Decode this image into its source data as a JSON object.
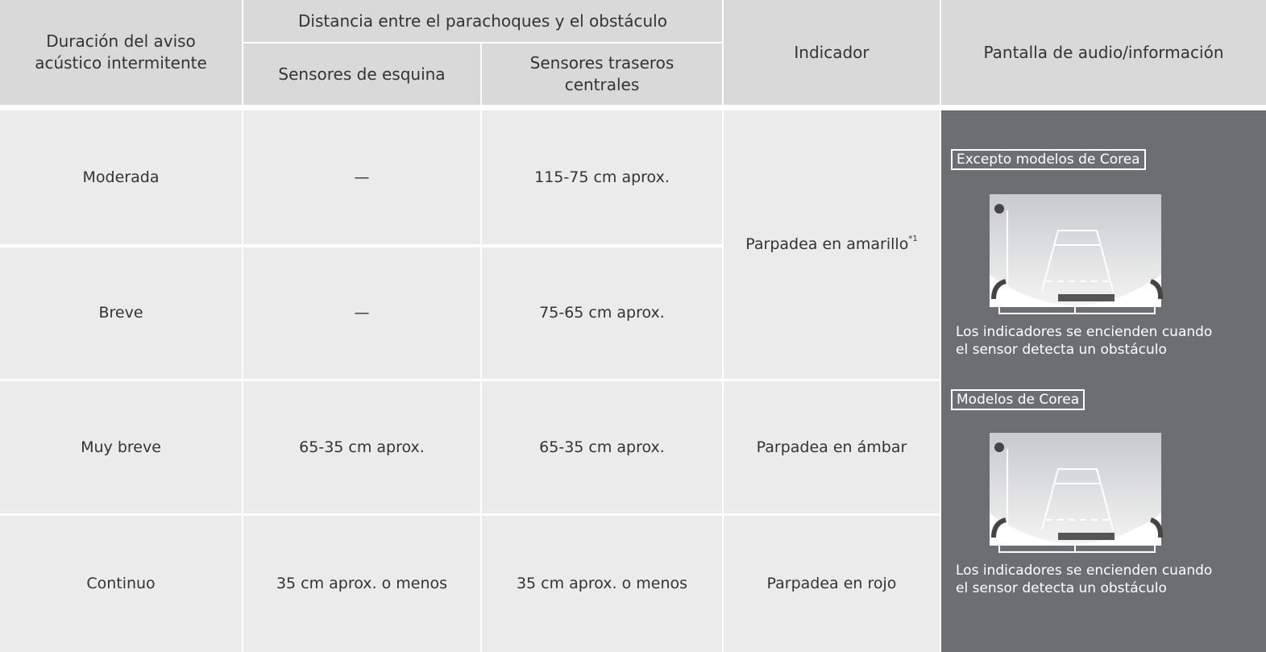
{
  "table": {
    "header": {
      "duration": [
        "Duración del aviso",
        "acústico intermitente"
      ],
      "distance": "Distancia entre el parachoques y el obstáculo",
      "corner": "Sensores de esquina",
      "rear": [
        "Sensores traseros",
        "centrales"
      ],
      "indicator": "Indicador",
      "display": "Pantalla de audio/información"
    },
    "rows": [
      [
        "Moderada",
        "—",
        "115-75 cm aprox."
      ],
      [
        "Breve",
        "—",
        "75-65 cm aprox."
      ],
      [
        "Muy breve",
        "65-35 cm aprox.",
        "65-35 cm aprox."
      ],
      [
        "Continuo",
        "35 cm aprox. o menos",
        "35 cm aprox. o menos"
      ]
    ],
    "indicator": [
      {
        "text": "Parpadea en amarillo",
        "note": "*1"
      },
      {
        "text": "Parpadea en ámbar"
      },
      {
        "text": "Parpadea en rojo"
      }
    ],
    "display": [
      {
        "label": "Excepto modelos de Corea",
        "caption": [
          "Los indicadores se encienden cuando",
          "el sensor detecta un obstáculo"
        ]
      },
      {
        "label": "Modelos de Corea",
        "caption": [
          "Los indicadores se encienden cuando",
          "el sensor detecta un obstáculo"
        ]
      }
    ]
  }
}
